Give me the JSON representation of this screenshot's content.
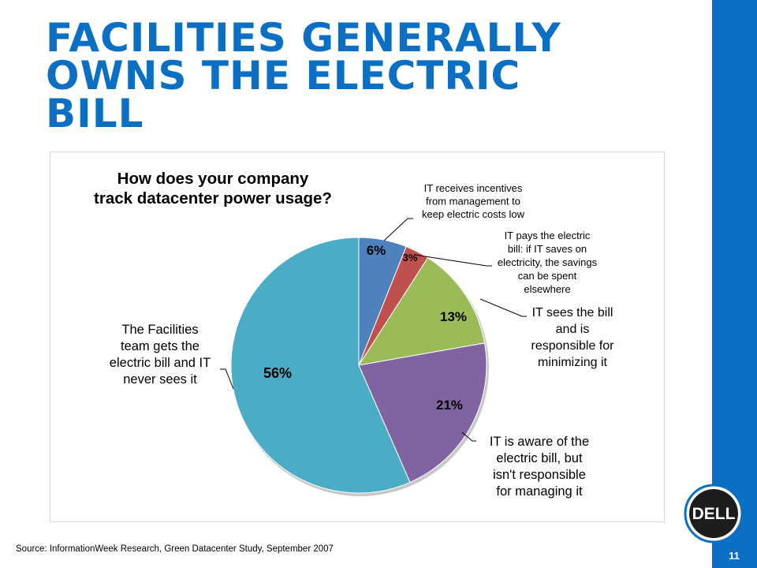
{
  "slide": {
    "title": "FACILITIES GENERALLY\nOWNS THE ELECTRIC\nBILL",
    "source": "Source: InformationWeek Research, Green Datacenter Study, September 2007",
    "page_number": "11",
    "logo_text": "DELL",
    "accent_color": "#0b6fc4"
  },
  "chart_data": {
    "type": "pie",
    "title": [
      "How does your company",
      "track datacenter power usage?"
    ],
    "slices": [
      {
        "value": 6,
        "label_text": "6%",
        "color": "#4f81bd",
        "category": [
          "IT receives incentives",
          "from management to",
          "keep electric costs low"
        ]
      },
      {
        "value": 3,
        "label_text": "3%",
        "color": "#c0504d",
        "category": [
          "IT pays the electric",
          "bill: if IT saves on",
          "electricity, the savings",
          "can be spent",
          "elsewhere"
        ]
      },
      {
        "value": 13,
        "label_text": "13%",
        "color": "#9bbb59",
        "category": [
          "IT sees the bill",
          "and is",
          "responsible for",
          "minimizing it"
        ]
      },
      {
        "value": 21,
        "label_text": "21%",
        "color": "#8064a2",
        "category": [
          "IT is aware of the",
          "electric bill, but",
          "isn't responsible",
          "for managing it"
        ]
      },
      {
        "value": 56,
        "label_text": "56%",
        "color": "#4bacc6",
        "category": [
          "The Facilities",
          "team gets the",
          "electric bill and IT",
          "never sees it"
        ]
      }
    ]
  }
}
